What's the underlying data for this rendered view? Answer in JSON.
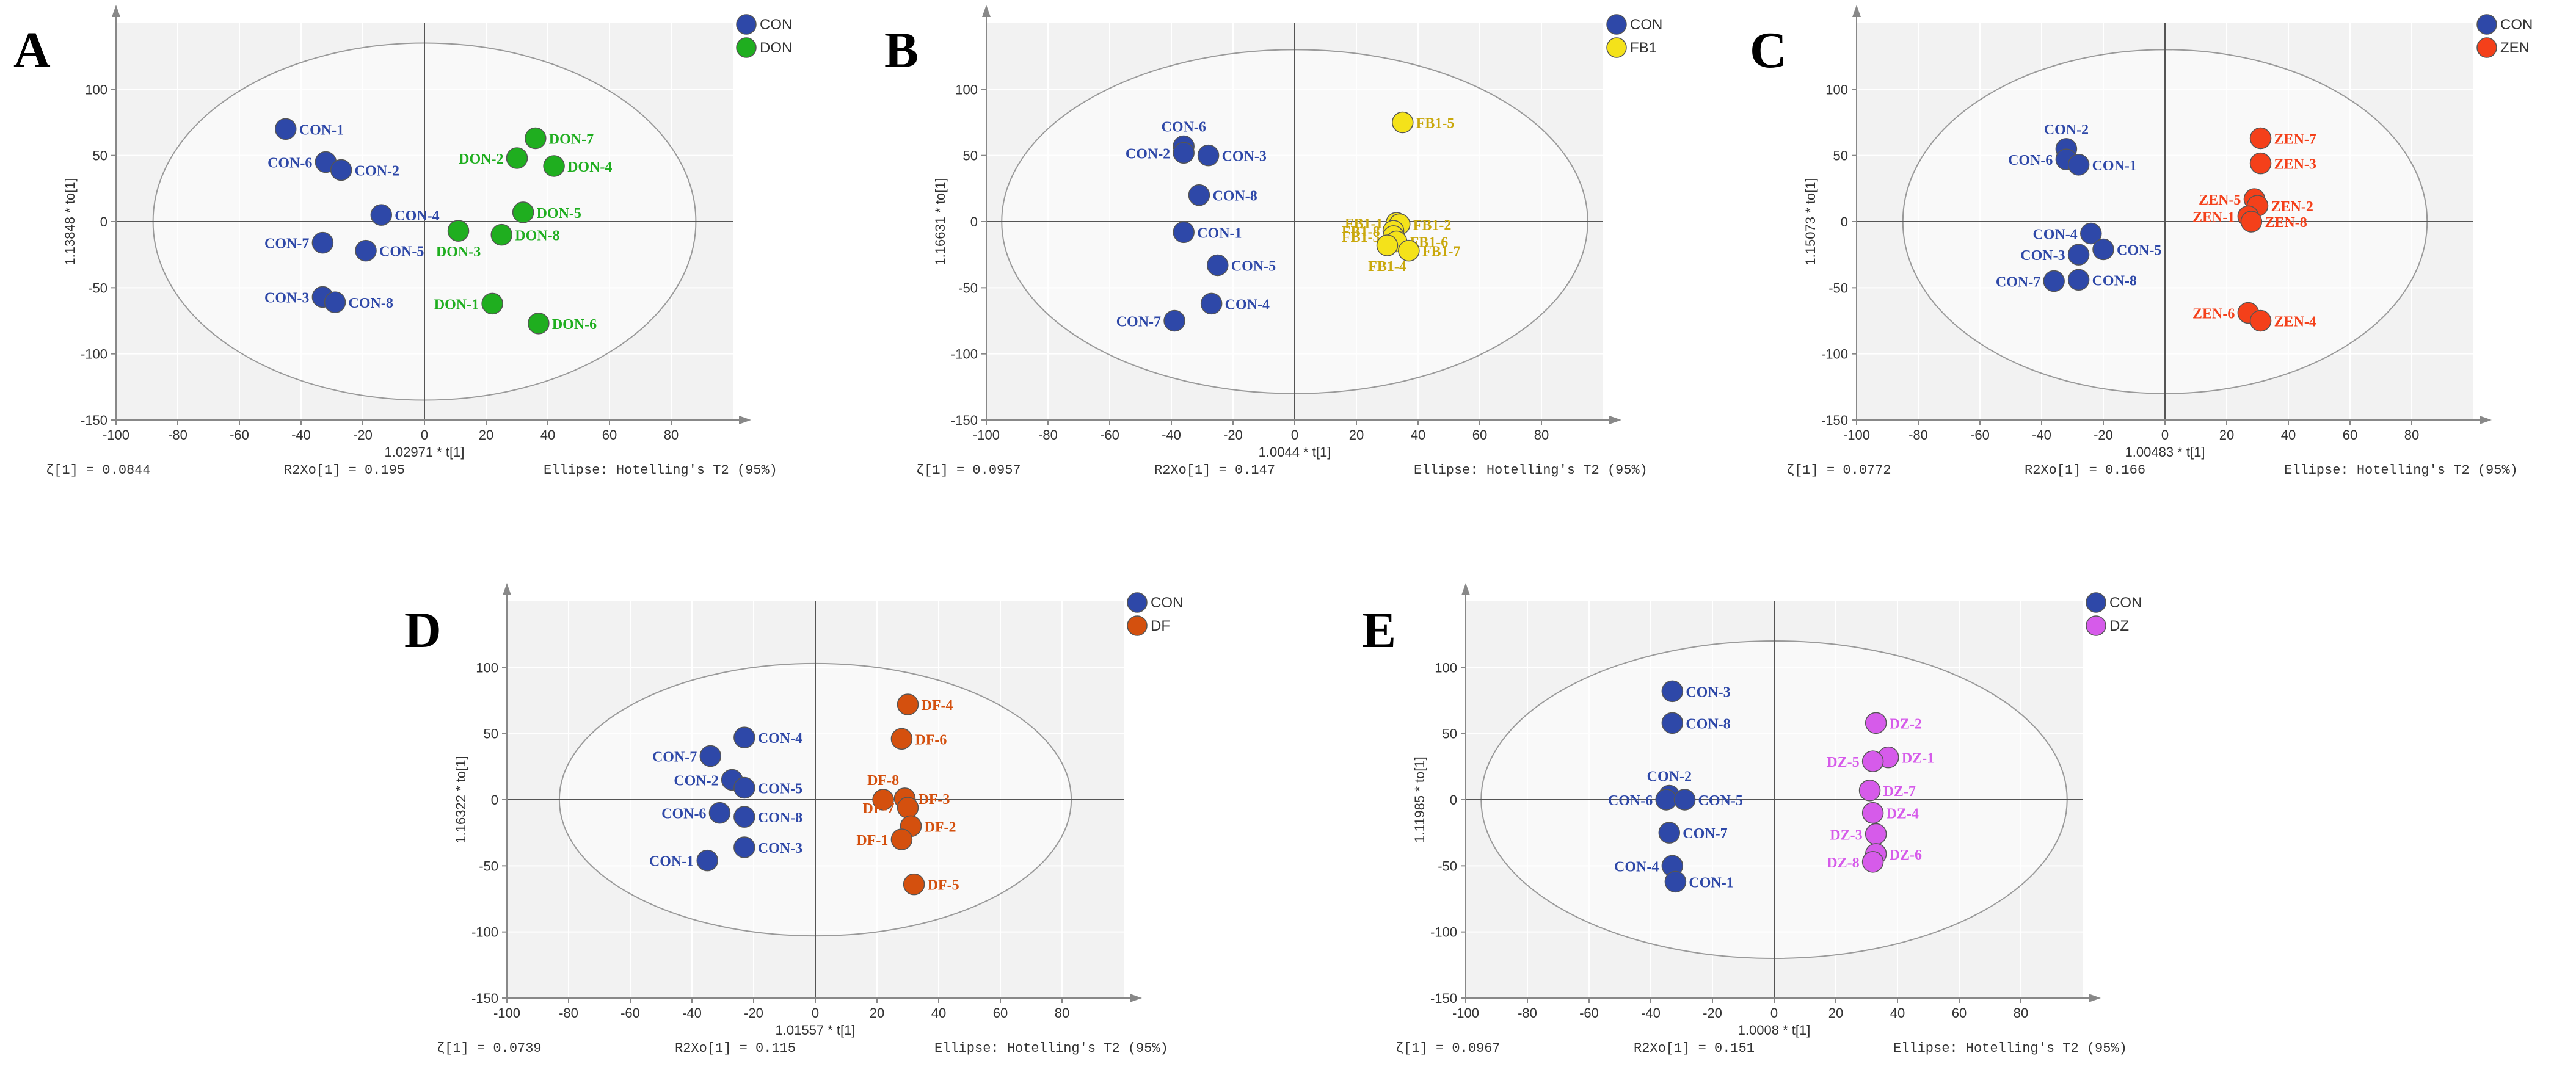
{
  "colors": {
    "CON": "#2e48a8",
    "DON": "#1fae1f",
    "FB1": "#f4e21a",
    "ZEN": "#f4401a",
    "DF": "#d4500e",
    "DZ": "#d65bea"
  },
  "chart_data": [
    {
      "type": "scatter",
      "panel_letter": "A",
      "xlabel": "1.02971 * t[1]",
      "ylabel": "1.13848 * to[1]",
      "xlim": [
        -100,
        100
      ],
      "ylim": [
        -150,
        150
      ],
      "xticks": [
        -100,
        -80,
        -60,
        -40,
        -20,
        0,
        20,
        40,
        60,
        80
      ],
      "yticks": [
        -150,
        -100,
        -50,
        0,
        50,
        100
      ],
      "stats": {
        "q": "ζ[1] = 0.0844",
        "r2xo": "R2Xo[1] = 0.195",
        "ellipse": "Ellipse: Hotelling's T2 (95%)"
      },
      "ellipse": {
        "rx": 88,
        "ry": 135
      },
      "legend": [
        "CON",
        "DON"
      ],
      "series": [
        {
          "name": "CON",
          "points": [
            {
              "label": "CON-1",
              "x": -45,
              "y": 70
            },
            {
              "label": "CON-6",
              "x": -32,
              "y": 45
            },
            {
              "label": "CON-2",
              "x": -27,
              "y": 39
            },
            {
              "label": "CON-4",
              "x": -14,
              "y": 5
            },
            {
              "label": "CON-7",
              "x": -33,
              "y": -16
            },
            {
              "label": "CON-5",
              "x": -19,
              "y": -22
            },
            {
              "label": "CON-3",
              "x": -33,
              "y": -57
            },
            {
              "label": "CON-8",
              "x": -29,
              "y": -61
            }
          ]
        },
        {
          "name": "DON",
          "points": [
            {
              "label": "DON-7",
              "x": 36,
              "y": 63
            },
            {
              "label": "DON-2",
              "x": 30,
              "y": 48
            },
            {
              "label": "DON-4",
              "x": 42,
              "y": 42
            },
            {
              "label": "DON-5",
              "x": 32,
              "y": 7
            },
            {
              "label": "DON-3",
              "x": 11,
              "y": -7
            },
            {
              "label": "DON-8",
              "x": 25,
              "y": -10
            },
            {
              "label": "DON-1",
              "x": 22,
              "y": -62
            },
            {
              "label": "DON-6",
              "x": 37,
              "y": -77
            }
          ]
        }
      ]
    },
    {
      "type": "scatter",
      "panel_letter": "B",
      "xlabel": "1.0044 * t[1]",
      "ylabel": "1.16631 * to[1]",
      "xlim": [
        -100,
        100
      ],
      "ylim": [
        -150,
        150
      ],
      "xticks": [
        -100,
        -80,
        -60,
        -40,
        -20,
        0,
        20,
        40,
        60,
        80
      ],
      "yticks": [
        -150,
        -100,
        -50,
        0,
        50,
        100
      ],
      "stats": {
        "q": "ζ[1] = 0.0957",
        "r2xo": "R2Xo[1] = 0.147",
        "ellipse": "Ellipse: Hotelling's T2 (95%)"
      },
      "ellipse": {
        "rx": 95,
        "ry": 130
      },
      "legend": [
        "CON",
        "FB1"
      ],
      "series": [
        {
          "name": "CON",
          "points": [
            {
              "label": "CON-6",
              "x": -36,
              "y": 57
            },
            {
              "label": "CON-2",
              "x": -36,
              "y": 52
            },
            {
              "label": "CON-3",
              "x": -28,
              "y": 50
            },
            {
              "label": "CON-8",
              "x": -31,
              "y": 20
            },
            {
              "label": "CON-1",
              "x": -36,
              "y": -8
            },
            {
              "label": "CON-5",
              "x": -25,
              "y": -33
            },
            {
              "label": "CON-4",
              "x": -27,
              "y": -62
            },
            {
              "label": "CON-7",
              "x": -39,
              "y": -75
            }
          ]
        },
        {
          "name": "FB1",
          "points": [
            {
              "label": "FB1-5",
              "x": 35,
              "y": 75
            },
            {
              "label": "FB1-1",
              "x": 33,
              "y": -1
            },
            {
              "label": "FB1-2",
              "x": 34,
              "y": -2
            },
            {
              "label": "FB1-8",
              "x": 32,
              "y": -7
            },
            {
              "label": "FB1-3",
              "x": 32,
              "y": -11
            },
            {
              "label": "FB1-6",
              "x": 33,
              "y": -15
            },
            {
              "label": "FB1-4",
              "x": 30,
              "y": -18
            },
            {
              "label": "FB1-7",
              "x": 37,
              "y": -22
            }
          ]
        }
      ]
    },
    {
      "type": "scatter",
      "panel_letter": "C",
      "xlabel": "1.00483 * t[1]",
      "ylabel": "1.15073 * to[1]",
      "xlim": [
        -100,
        100
      ],
      "ylim": [
        -150,
        150
      ],
      "xticks": [
        -100,
        -80,
        -60,
        -40,
        -20,
        0,
        20,
        40,
        60,
        80
      ],
      "yticks": [
        -150,
        -100,
        -50,
        0,
        50,
        100
      ],
      "stats": {
        "q": "ζ[1] = 0.0772",
        "r2xo": "R2Xo[1] = 0.166",
        "ellipse": "Ellipse: Hotelling's T2 (95%)"
      },
      "ellipse": {
        "rx": 85,
        "ry": 130
      },
      "legend": [
        "CON",
        "ZEN"
      ],
      "series": [
        {
          "name": "CON",
          "points": [
            {
              "label": "CON-2",
              "x": -32,
              "y": 55
            },
            {
              "label": "CON-6",
              "x": -32,
              "y": 47
            },
            {
              "label": "CON-1",
              "x": -28,
              "y": 43
            },
            {
              "label": "CON-4",
              "x": -24,
              "y": -9
            },
            {
              "label": "CON-5",
              "x": -20,
              "y": -21
            },
            {
              "label": "CON-3",
              "x": -28,
              "y": -25
            },
            {
              "label": "CON-7",
              "x": -36,
              "y": -45
            },
            {
              "label": "CON-8",
              "x": -28,
              "y": -44
            }
          ]
        },
        {
          "name": "ZEN",
          "points": [
            {
              "label": "ZEN-7",
              "x": 31,
              "y": 63
            },
            {
              "label": "ZEN-3",
              "x": 31,
              "y": 44
            },
            {
              "label": "ZEN-5",
              "x": 29,
              "y": 17
            },
            {
              "label": "ZEN-2",
              "x": 30,
              "y": 12
            },
            {
              "label": "ZEN-1",
              "x": 27,
              "y": 4
            },
            {
              "label": "ZEN-8",
              "x": 28,
              "y": 0
            },
            {
              "label": "ZEN-6",
              "x": 27,
              "y": -69
            },
            {
              "label": "ZEN-4",
              "x": 31,
              "y": -75
            }
          ]
        }
      ]
    },
    {
      "type": "scatter",
      "panel_letter": "D",
      "xlabel": "1.01557 * t[1]",
      "ylabel": "1.16322 * to[1]",
      "xlim": [
        -100,
        100
      ],
      "ylim": [
        -150,
        150
      ],
      "xticks": [
        -100,
        -80,
        -60,
        -40,
        -20,
        0,
        20,
        40,
        60,
        80
      ],
      "yticks": [
        -150,
        -100,
        -50,
        0,
        50,
        100
      ],
      "stats": {
        "q": "ζ[1] = 0.0739",
        "r2xo": "R2Xo[1] = 0.115",
        "ellipse": "Ellipse: Hotelling's T2 (95%)"
      },
      "ellipse": {
        "rx": 83,
        "ry": 103
      },
      "legend": [
        "CON",
        "DF"
      ],
      "series": [
        {
          "name": "CON",
          "points": [
            {
              "label": "CON-4",
              "x": -23,
              "y": 47
            },
            {
              "label": "CON-7",
              "x": -34,
              "y": 33
            },
            {
              "label": "CON-2",
              "x": -27,
              "y": 15
            },
            {
              "label": "CON-5",
              "x": -23,
              "y": 9
            },
            {
              "label": "CON-6",
              "x": -31,
              "y": -10
            },
            {
              "label": "CON-8",
              "x": -23,
              "y": -13
            },
            {
              "label": "CON-3",
              "x": -23,
              "y": -36
            },
            {
              "label": "CON-1",
              "x": -35,
              "y": -46
            }
          ]
        },
        {
          "name": "DF",
          "points": [
            {
              "label": "DF-4",
              "x": 30,
              "y": 72
            },
            {
              "label": "DF-6",
              "x": 28,
              "y": 46
            },
            {
              "label": "DF-8",
              "x": 22,
              "y": 0
            },
            {
              "label": "DF-3",
              "x": 29,
              "y": 1
            },
            {
              "label": "DF-7",
              "x": 30,
              "y": -6
            },
            {
              "label": "DF-2",
              "x": 31,
              "y": -20
            },
            {
              "label": "DF-1",
              "x": 28,
              "y": -30
            },
            {
              "label": "DF-5",
              "x": 32,
              "y": -64
            }
          ]
        }
      ]
    },
    {
      "type": "scatter",
      "panel_letter": "E",
      "xlabel": "1.0008 * t[1]",
      "ylabel": "1.11985 * to[1]",
      "xlim": [
        -100,
        100
      ],
      "ylim": [
        -150,
        150
      ],
      "xticks": [
        -100,
        -80,
        -60,
        -40,
        -20,
        0,
        20,
        40,
        60,
        80
      ],
      "yticks": [
        -150,
        -100,
        -50,
        0,
        50,
        100
      ],
      "stats": {
        "q": "ζ[1] = 0.0967",
        "r2xo": "R2Xo[1] = 0.151",
        "ellipse": "Ellipse: Hotelling's T2 (95%)"
      },
      "ellipse": {
        "rx": 95,
        "ry": 120
      },
      "legend": [
        "CON",
        "DZ"
      ],
      "series": [
        {
          "name": "CON",
          "points": [
            {
              "label": "CON-3",
              "x": -33,
              "y": 82
            },
            {
              "label": "CON-8",
              "x": -33,
              "y": 58
            },
            {
              "label": "CON-2",
              "x": -34,
              "y": 3
            },
            {
              "label": "CON-6",
              "x": -35,
              "y": 0
            },
            {
              "label": "CON-5",
              "x": -29,
              "y": 0
            },
            {
              "label": "CON-7",
              "x": -34,
              "y": -25
            },
            {
              "label": "CON-4",
              "x": -33,
              "y": -50
            },
            {
              "label": "CON-1",
              "x": -32,
              "y": -62
            }
          ]
        },
        {
          "name": "DZ",
          "points": [
            {
              "label": "DZ-2",
              "x": 33,
              "y": 58
            },
            {
              "label": "DZ-1",
              "x": 37,
              "y": 32
            },
            {
              "label": "DZ-5",
              "x": 32,
              "y": 29
            },
            {
              "label": "DZ-7",
              "x": 31,
              "y": 7
            },
            {
              "label": "DZ-4",
              "x": 32,
              "y": -10
            },
            {
              "label": "DZ-3",
              "x": 33,
              "y": -26
            },
            {
              "label": "DZ-6",
              "x": 33,
              "y": -41
            },
            {
              "label": "DZ-8",
              "x": 32,
              "y": -47
            }
          ]
        }
      ]
    }
  ]
}
